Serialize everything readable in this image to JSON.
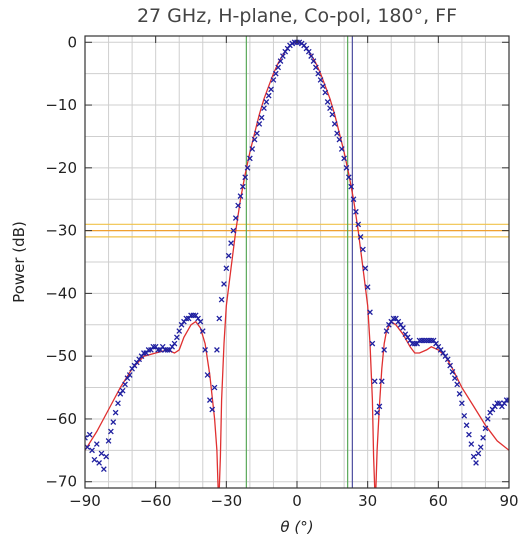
{
  "chart_data": {
    "type": "scatter",
    "title": "27 GHz, H-plane, Co-pol, 180°, FF",
    "xlabel": "θ (°)",
    "ylabel": "Power (dB)",
    "xlim": [
      -90,
      90
    ],
    "ylim": [
      -71,
      1
    ],
    "x_ticks": [
      -90,
      -60,
      -30,
      0,
      30,
      60,
      90
    ],
    "y_ticks": [
      0,
      -10,
      -20,
      -30,
      -40,
      -50,
      -60,
      -70
    ],
    "x_tick_labels": [
      "−90",
      "−60",
      "−30",
      "0",
      "30",
      "60",
      "90"
    ],
    "y_tick_labels": [
      "0",
      "−10",
      "−20",
      "−30",
      "−40",
      "−50",
      "−60",
      "−70"
    ],
    "grid": true,
    "vertical_reference_lines": [
      {
        "x": -21.5,
        "color": "#5aa85a"
      },
      {
        "x": 21.5,
        "color": "#5aa85a"
      },
      {
        "x": 23.5,
        "color": "#4d4d9f"
      }
    ],
    "horizontal_reference_lines": [
      {
        "y": -29,
        "color": "#f0c24a"
      },
      {
        "y": -30,
        "color": "#f0a030"
      },
      {
        "y": -31,
        "color": "#f0c24a"
      }
    ],
    "series": [
      {
        "kind": "measured",
        "marker": "x",
        "color": "#2020a0",
        "points": [
          [
            -90,
            -63
          ],
          [
            -89,
            -64.5
          ],
          [
            -88,
            -62.5
          ],
          [
            -87,
            -65
          ],
          [
            -86,
            -66.5
          ],
          [
            -85,
            -64
          ],
          [
            -84,
            -67
          ],
          [
            -83,
            -65.5
          ],
          [
            -82,
            -68
          ],
          [
            -81,
            -66
          ],
          [
            -80,
            -63.5
          ],
          [
            -79,
            -62
          ],
          [
            -78,
            -60.5
          ],
          [
            -77,
            -59
          ],
          [
            -76,
            -57.5
          ],
          [
            -75,
            -56
          ],
          [
            -74,
            -55.5
          ],
          [
            -73,
            -54.5
          ],
          [
            -72,
            -53.5
          ],
          [
            -71,
            -53
          ],
          [
            -70,
            -52
          ],
          [
            -69,
            -51.5
          ],
          [
            -68,
            -51
          ],
          [
            -67,
            -50.5
          ],
          [
            -66,
            -50
          ],
          [
            -65,
            -49.5
          ],
          [
            -64,
            -49.5
          ],
          [
            -63,
            -49
          ],
          [
            -62,
            -49
          ],
          [
            -61,
            -48.5
          ],
          [
            -60,
            -48.5
          ],
          [
            -59,
            -49
          ],
          [
            -58,
            -49
          ],
          [
            -57,
            -48.5
          ],
          [
            -56,
            -49
          ],
          [
            -55,
            -49
          ],
          [
            -54,
            -49
          ],
          [
            -53,
            -48.5
          ],
          [
            -52,
            -48
          ],
          [
            -51,
            -47
          ],
          [
            -50,
            -46
          ],
          [
            -49,
            -45
          ],
          [
            -48,
            -44.5
          ],
          [
            -47,
            -44
          ],
          [
            -46,
            -44
          ],
          [
            -45,
            -43.5
          ],
          [
            -44,
            -43.5
          ],
          [
            -43,
            -43.5
          ],
          [
            -42,
            -44
          ],
          [
            -41,
            -44.5
          ],
          [
            -40,
            -46
          ],
          [
            -39,
            -49
          ],
          [
            -38,
            -53
          ],
          [
            -37,
            -57
          ],
          [
            -36,
            -58.5
          ],
          [
            -35,
            -55
          ],
          [
            -34,
            -49
          ],
          [
            -33,
            -44
          ],
          [
            -32,
            -41
          ],
          [
            -31,
            -38.5
          ],
          [
            -30,
            -36
          ],
          [
            -29,
            -34
          ],
          [
            -28,
            -32
          ],
          [
            -27,
            -30
          ],
          [
            -26,
            -28
          ],
          [
            -25,
            -26
          ],
          [
            -24,
            -24.5
          ],
          [
            -23,
            -23
          ],
          [
            -22,
            -21.5
          ],
          [
            -21,
            -20
          ],
          [
            -20,
            -18.5
          ],
          [
            -19,
            -17
          ],
          [
            -18,
            -15.5
          ],
          [
            -17,
            -14.5
          ],
          [
            -16,
            -13
          ],
          [
            -15,
            -12
          ],
          [
            -14,
            -10.5
          ],
          [
            -13,
            -9.5
          ],
          [
            -12,
            -8.5
          ],
          [
            -11,
            -7.5
          ],
          [
            -10,
            -6
          ],
          [
            -9,
            -5
          ],
          [
            -8,
            -4
          ],
          [
            -7,
            -3
          ],
          [
            -6,
            -2.2
          ],
          [
            -5,
            -1.5
          ],
          [
            -4,
            -1
          ],
          [
            -3,
            -0.5
          ],
          [
            -2,
            -0.2
          ],
          [
            -1,
            0
          ],
          [
            0,
            0
          ],
          [
            1,
            0
          ],
          [
            2,
            -0.2
          ],
          [
            3,
            -0.5
          ],
          [
            4,
            -1
          ],
          [
            5,
            -1.5
          ],
          [
            6,
            -2.2
          ],
          [
            7,
            -3
          ],
          [
            8,
            -4
          ],
          [
            9,
            -5
          ],
          [
            10,
            -6
          ],
          [
            11,
            -7
          ],
          [
            12,
            -8
          ],
          [
            13,
            -9.5
          ],
          [
            14,
            -10.5
          ],
          [
            15,
            -11.5
          ],
          [
            16,
            -13
          ],
          [
            17,
            -14.5
          ],
          [
            18,
            -15.5
          ],
          [
            19,
            -17
          ],
          [
            20,
            -18.5
          ],
          [
            21,
            -20
          ],
          [
            22,
            -21.5
          ],
          [
            23,
            -23
          ],
          [
            24,
            -25
          ],
          [
            25,
            -27
          ],
          [
            26,
            -29
          ],
          [
            27,
            -31
          ],
          [
            28,
            -33
          ],
          [
            29,
            -36
          ],
          [
            30,
            -39
          ],
          [
            31,
            -43
          ],
          [
            32,
            -48
          ],
          [
            33,
            -54
          ],
          [
            34,
            -59
          ],
          [
            35,
            -58
          ],
          [
            36,
            -54
          ],
          [
            37,
            -49
          ],
          [
            38,
            -46
          ],
          [
            39,
            -45
          ],
          [
            40,
            -44.5
          ],
          [
            41,
            -44
          ],
          [
            42,
            -44
          ],
          [
            43,
            -44.5
          ],
          [
            44,
            -45
          ],
          [
            45,
            -45.5
          ],
          [
            46,
            -46.5
          ],
          [
            47,
            -47
          ],
          [
            48,
            -47.5
          ],
          [
            49,
            -48
          ],
          [
            50,
            -48
          ],
          [
            51,
            -48
          ],
          [
            52,
            -47.5
          ],
          [
            53,
            -47.5
          ],
          [
            54,
            -47.5
          ],
          [
            55,
            -47.5
          ],
          [
            56,
            -47.5
          ],
          [
            57,
            -47.5
          ],
          [
            58,
            -47.5
          ],
          [
            59,
            -48
          ],
          [
            60,
            -48.5
          ],
          [
            61,
            -49
          ],
          [
            62,
            -49.5
          ],
          [
            63,
            -50
          ],
          [
            64,
            -50.5
          ],
          [
            65,
            -51.5
          ],
          [
            66,
            -52.5
          ],
          [
            67,
            -53.5
          ],
          [
            68,
            -54.5
          ],
          [
            69,
            -56
          ],
          [
            70,
            -57.5
          ],
          [
            71,
            -59.5
          ],
          [
            72,
            -61
          ],
          [
            73,
            -62.5
          ],
          [
            74,
            -64
          ],
          [
            75,
            -66
          ],
          [
            76,
            -67
          ],
          [
            77,
            -65.5
          ],
          [
            78,
            -64.5
          ],
          [
            79,
            -63
          ],
          [
            80,
            -61.5
          ],
          [
            81,
            -60
          ],
          [
            82,
            -59
          ],
          [
            83,
            -58.5
          ],
          [
            84,
            -58
          ],
          [
            85,
            -57.5
          ],
          [
            86,
            -57.5
          ],
          [
            87,
            -58
          ],
          [
            88,
            -57.5
          ],
          [
            89,
            -57
          ],
          [
            90,
            -57
          ]
        ]
      },
      {
        "kind": "model",
        "marker": "line",
        "color": "#e03030",
        "points": [
          [
            -90,
            -65
          ],
          [
            -85,
            -62
          ],
          [
            -80,
            -58.5
          ],
          [
            -75,
            -55
          ],
          [
            -70,
            -52
          ],
          [
            -65,
            -50
          ],
          [
            -60,
            -49.5
          ],
          [
            -55,
            -49
          ],
          [
            -52,
            -49.5
          ],
          [
            -50,
            -49
          ],
          [
            -48,
            -47
          ],
          [
            -45,
            -45
          ],
          [
            -43,
            -44.5
          ],
          [
            -41,
            -45.5
          ],
          [
            -39,
            -48
          ],
          [
            -37,
            -53
          ],
          [
            -35,
            -60
          ],
          [
            -34,
            -65
          ],
          [
            -33.5,
            -71
          ],
          [
            -33,
            -71
          ],
          [
            -32.5,
            -66
          ],
          [
            -32,
            -57
          ],
          [
            -31,
            -48
          ],
          [
            -30,
            -42
          ],
          [
            -28,
            -36
          ],
          [
            -26,
            -30
          ],
          [
            -24,
            -25
          ],
          [
            -22,
            -21
          ],
          [
            -20,
            -17.5
          ],
          [
            -18,
            -14.5
          ],
          [
            -16,
            -11.5
          ],
          [
            -14,
            -9
          ],
          [
            -12,
            -7
          ],
          [
            -10,
            -5
          ],
          [
            -8,
            -3.3
          ],
          [
            -6,
            -2
          ],
          [
            -4,
            -0.9
          ],
          [
            -2,
            -0.2
          ],
          [
            0,
            0
          ],
          [
            2,
            -0.2
          ],
          [
            4,
            -0.9
          ],
          [
            6,
            -2
          ],
          [
            8,
            -3.3
          ],
          [
            10,
            -5
          ],
          [
            12,
            -7
          ],
          [
            14,
            -9
          ],
          [
            16,
            -11.5
          ],
          [
            18,
            -14.5
          ],
          [
            20,
            -17.5
          ],
          [
            22,
            -21
          ],
          [
            24,
            -25
          ],
          [
            26,
            -30
          ],
          [
            28,
            -36
          ],
          [
            30,
            -42
          ],
          [
            31,
            -48
          ],
          [
            32,
            -57
          ],
          [
            32.5,
            -66
          ],
          [
            33,
            -71
          ],
          [
            33.5,
            -71
          ],
          [
            34,
            -65
          ],
          [
            35,
            -58
          ],
          [
            36,
            -52
          ],
          [
            37,
            -48
          ],
          [
            38,
            -46
          ],
          [
            40,
            -44.5
          ],
          [
            42,
            -45
          ],
          [
            45,
            -46.5
          ],
          [
            48,
            -48.5
          ],
          [
            50,
            -49.5
          ],
          [
            52,
            -49.5
          ],
          [
            55,
            -49
          ],
          [
            57,
            -48.5
          ],
          [
            60,
            -49
          ],
          [
            63,
            -50
          ],
          [
            66,
            -52
          ],
          [
            70,
            -55
          ],
          [
            75,
            -58
          ],
          [
            80,
            -61
          ],
          [
            85,
            -63.5
          ],
          [
            90,
            -65
          ]
        ]
      }
    ]
  }
}
